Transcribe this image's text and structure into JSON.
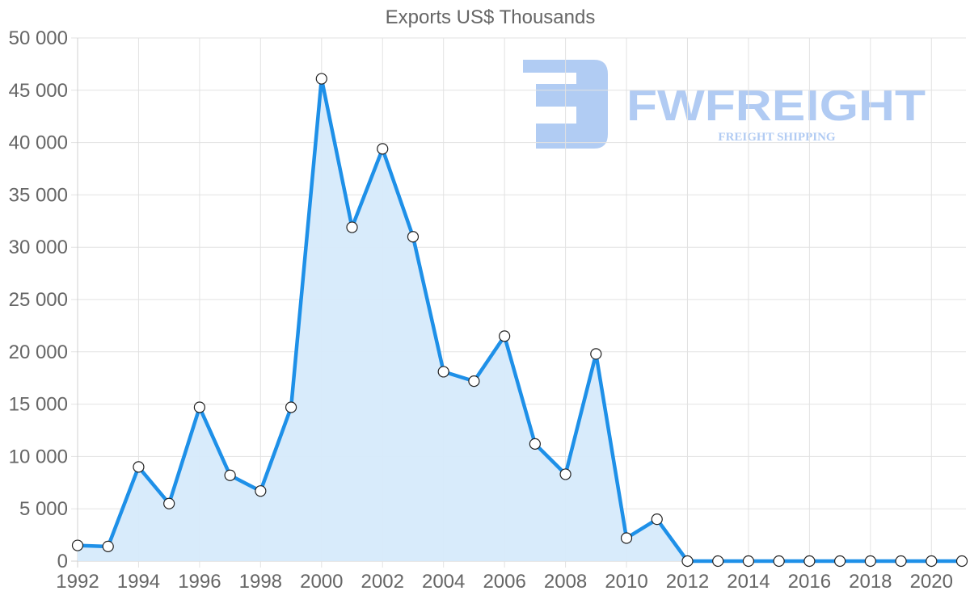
{
  "chart_data": {
    "type": "area",
    "title": "Exports US$ Thousands",
    "xlabel": "",
    "ylabel": "",
    "ylim": [
      0,
      50000
    ],
    "y_ticks": [
      "0",
      "5 000",
      "10 000",
      "15 000",
      "20 000",
      "25 000",
      "30 000",
      "35 000",
      "40 000",
      "45 000",
      "50 000"
    ],
    "x_tick_labels": [
      "1992",
      "1994",
      "1996",
      "1998",
      "2000",
      "2002",
      "2004",
      "2006",
      "2008",
      "2010",
      "2012",
      "2014",
      "2016",
      "2018",
      "2020"
    ],
    "grid": true,
    "legend": "none",
    "x": [
      1992,
      1993,
      1994,
      1995,
      1996,
      1997,
      1998,
      1999,
      2000,
      2001,
      2002,
      2003,
      2004,
      2005,
      2006,
      2007,
      2008,
      2009,
      2010,
      2011,
      2012,
      2013,
      2014,
      2015,
      2016,
      2017,
      2018,
      2019,
      2020,
      2021
    ],
    "series": [
      {
        "name": "Exports US$ Thousands",
        "color": "#1e90e8",
        "fill": "#d6eafb",
        "values": [
          1500,
          1400,
          9000,
          5500,
          14700,
          8200,
          6700,
          14700,
          46100,
          31900,
          39400,
          31000,
          18100,
          17200,
          21500,
          11200,
          8300,
          19800,
          2200,
          4000,
          0,
          0,
          0,
          0,
          0,
          0,
          0,
          0,
          0,
          0
        ]
      }
    ]
  },
  "watermark": {
    "brand": "FWFREIGHT",
    "tagline": "FREIGHT SHIPPING",
    "color": "#a9c6f2"
  }
}
